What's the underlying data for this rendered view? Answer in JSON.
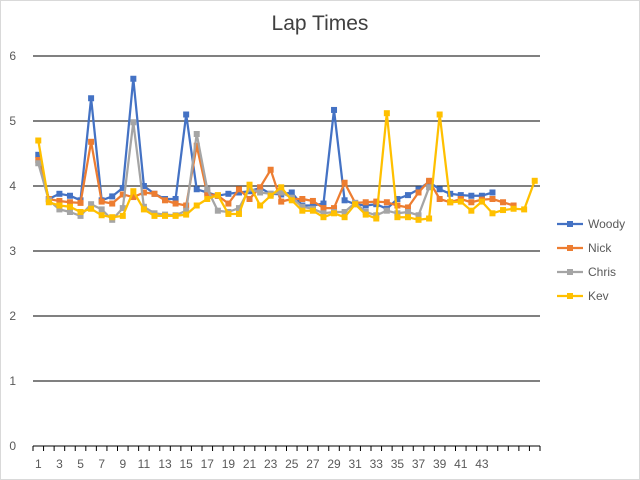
{
  "chart_data": {
    "type": "line",
    "title": "Lap Times",
    "xlabel": "",
    "ylabel": "",
    "ylim": [
      0,
      6
    ],
    "yticks": [
      0,
      1,
      2,
      3,
      4,
      5,
      6
    ],
    "xticks": [
      1,
      3,
      5,
      7,
      9,
      11,
      13,
      15,
      17,
      19,
      21,
      23,
      25,
      27,
      29,
      31,
      33,
      35,
      37,
      39,
      41,
      43
    ],
    "x_count": 48,
    "grid": true,
    "legend_position": "right",
    "series": [
      {
        "name": "Woody",
        "color": "#4472C4",
        "values": [
          4.48,
          3.8,
          3.88,
          3.85,
          3.78,
          5.35,
          3.78,
          3.84,
          3.97,
          5.65,
          4.0,
          3.88,
          3.8,
          3.8,
          5.1,
          3.95,
          3.9,
          3.85,
          3.88,
          3.9,
          3.92,
          3.97,
          3.88,
          3.87,
          3.9,
          3.7,
          3.7,
          3.73,
          5.17,
          3.78,
          3.72,
          3.7,
          3.72,
          3.65,
          3.8,
          3.86,
          3.95,
          4.06,
          3.95,
          3.88,
          3.86,
          3.85,
          3.85,
          3.9
        ]
      },
      {
        "name": "Nick",
        "color": "#ED7D31",
        "values": [
          4.4,
          3.8,
          3.77,
          3.75,
          3.74,
          4.68,
          3.76,
          3.73,
          3.87,
          3.83,
          3.9,
          3.88,
          3.78,
          3.73,
          3.7,
          4.62,
          3.88,
          3.85,
          3.73,
          3.95,
          3.8,
          3.98,
          4.25,
          3.76,
          3.8,
          3.8,
          3.77,
          3.66,
          3.66,
          4.05,
          3.74,
          3.75,
          3.76,
          3.75,
          3.7,
          3.67,
          3.9,
          4.08,
          3.8,
          3.75,
          3.8,
          3.75,
          3.79,
          3.8,
          3.75,
          3.7
        ]
      },
      {
        "name": "Chris",
        "color": "#A5A5A5",
        "values": [
          4.35,
          3.78,
          3.64,
          3.6,
          3.54,
          3.72,
          3.64,
          3.48,
          3.66,
          4.98,
          3.68,
          3.58,
          3.56,
          3.55,
          3.62,
          4.8,
          3.95,
          3.62,
          3.6,
          3.66,
          3.96,
          3.9,
          3.88,
          3.9,
          3.82,
          3.68,
          3.65,
          3.58,
          3.6,
          3.6,
          3.74,
          3.6,
          3.55,
          3.62,
          3.58,
          3.6,
          3.55,
          3.98
        ]
      },
      {
        "name": "Kev",
        "color": "#FFC000",
        "values": [
          4.7,
          3.75,
          3.7,
          3.68,
          3.6,
          3.65,
          3.55,
          3.52,
          3.54,
          3.92,
          3.64,
          3.54,
          3.54,
          3.54,
          3.56,
          3.7,
          3.8,
          3.86,
          3.57,
          3.57,
          4.02,
          3.7,
          3.85,
          3.98,
          3.78,
          3.62,
          3.62,
          3.52,
          3.58,
          3.52,
          3.72,
          3.56,
          3.5,
          5.12,
          3.52,
          3.52,
          3.48,
          3.5,
          5.1,
          3.75,
          3.76,
          3.62,
          3.76,
          3.58,
          3.63,
          3.65,
          3.64,
          4.08
        ]
      }
    ]
  }
}
